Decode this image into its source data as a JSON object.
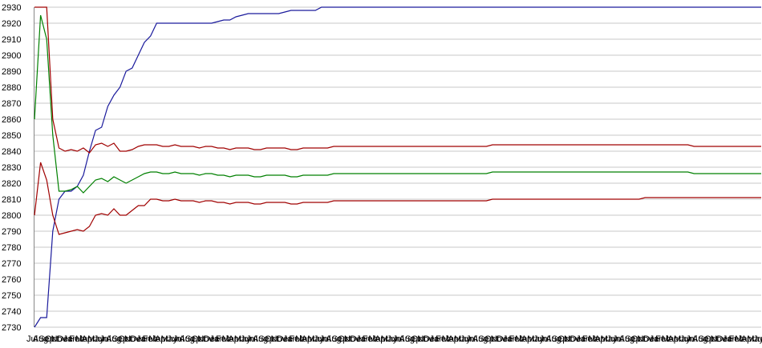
{
  "chart_data": {
    "type": "line",
    "categories": [
      "Jul",
      "Aug",
      "Sep",
      "Oct",
      "Nov",
      "Dec",
      "Jan",
      "Feb",
      "Mar",
      "Apr",
      "May",
      "Jun",
      "Jul",
      "Aug",
      "Sep",
      "Oct",
      "Nov",
      "Dec",
      "Jan",
      "Feb",
      "Mar",
      "Apr",
      "May",
      "Jun",
      "Jul",
      "Aug",
      "Sep",
      "Oct",
      "Nov",
      "Dec",
      "Jan",
      "Feb",
      "Mar",
      "Apr",
      "May",
      "Jun",
      "Jul",
      "Aug",
      "Sep",
      "Oct",
      "Nov",
      "Dec",
      "Jan",
      "Feb",
      "Mar",
      "Apr",
      "May",
      "Jun",
      "Jul",
      "Aug",
      "Sep",
      "Oct",
      "Nov",
      "Dec",
      "Jan",
      "Feb",
      "Mar",
      "Apr",
      "May",
      "Jun",
      "Jul",
      "Aug",
      "Sep",
      "Oct",
      "Nov",
      "Dec",
      "Jan",
      "Feb",
      "Mar",
      "Apr",
      "May",
      "Jun",
      "Jul",
      "Aug",
      "Sep",
      "Oct",
      "Nov",
      "Dec",
      "Jan",
      "Feb",
      "Mar",
      "Apr",
      "May",
      "Jun",
      "Jul",
      "Aug",
      "Sep",
      "Oct",
      "Nov",
      "Dec",
      "Jan",
      "Feb",
      "Mar",
      "Apr",
      "May",
      "Jun",
      "Jul",
      "Aug",
      "Sep",
      "Oct",
      "Nov",
      "Dec",
      "Jan",
      "Feb",
      "Mar",
      "Apr",
      "May",
      "Jun",
      "Jul",
      "Aug",
      "Sep",
      "Oct",
      "Nov",
      "Dec",
      "Jan",
      "Feb",
      "Mar",
      "Apr",
      "May",
      "Jun"
    ],
    "series": [
      {
        "color": "#1a1a9c",
        "values": [
          2730,
          2736,
          2736,
          2790,
          2810,
          2815,
          2815,
          2818,
          2825,
          2840,
          2853,
          2855,
          2868,
          2875,
          2880,
          2890,
          2892,
          2900,
          2908,
          2912,
          2920,
          2920,
          2920,
          2920,
          2920,
          2920,
          2920,
          2920,
          2920,
          2920,
          2921,
          2922,
          2922,
          2924,
          2925,
          2926,
          2926,
          2926,
          2926,
          2926,
          2926,
          2927,
          2928,
          2928,
          2928,
          2928,
          2928,
          2930,
          2930,
          2930,
          2930,
          2930,
          2930,
          2930,
          2930,
          2930,
          2930,
          2930,
          2930,
          2930,
          2930,
          2930,
          2930,
          2930,
          2930,
          2930,
          2930,
          2930,
          2930,
          2930,
          2930,
          2930,
          2930,
          2930,
          2930,
          2930,
          2930,
          2930,
          2930,
          2930,
          2930,
          2930,
          2930,
          2930,
          2930,
          2930,
          2930,
          2930,
          2930,
          2930,
          2930,
          2930,
          2930,
          2930,
          2930,
          2930,
          2930,
          2930,
          2930,
          2930,
          2930,
          2930,
          2930,
          2930,
          2930,
          2930,
          2930,
          2930,
          2930,
          2930,
          2930,
          2930,
          2930,
          2930,
          2930,
          2930,
          2930,
          2930,
          2930,
          2930
        ]
      },
      {
        "color": "#008000",
        "values": [
          2860,
          2925,
          2910,
          2850,
          2815,
          2815,
          2816,
          2818,
          2814,
          2818,
          2822,
          2823,
          2821,
          2824,
          2822,
          2820,
          2822,
          2824,
          2826,
          2827,
          2827,
          2826,
          2826,
          2827,
          2826,
          2826,
          2826,
          2825,
          2826,
          2826,
          2825,
          2825,
          2824,
          2825,
          2825,
          2825,
          2824,
          2824,
          2825,
          2825,
          2825,
          2825,
          2824,
          2824,
          2825,
          2825,
          2825,
          2825,
          2825,
          2826,
          2826,
          2826,
          2826,
          2826,
          2826,
          2826,
          2826,
          2826,
          2826,
          2826,
          2826,
          2826,
          2826,
          2826,
          2826,
          2826,
          2826,
          2826,
          2826,
          2826,
          2826,
          2826,
          2826,
          2826,
          2826,
          2827,
          2827,
          2827,
          2827,
          2827,
          2827,
          2827,
          2827,
          2827,
          2827,
          2827,
          2827,
          2827,
          2827,
          2827,
          2827,
          2827,
          2827,
          2827,
          2827,
          2827,
          2827,
          2827,
          2827,
          2827,
          2827,
          2827,
          2827,
          2827,
          2827,
          2827,
          2827,
          2827,
          2826,
          2826,
          2826,
          2826,
          2826,
          2826,
          2826,
          2826,
          2826,
          2826,
          2826,
          2826
        ]
      },
      {
        "color": "#a00000",
        "values": [
          2930,
          2930,
          2930,
          2860,
          2842,
          2840,
          2841,
          2840,
          2842,
          2839,
          2844,
          2845,
          2843,
          2845,
          2840,
          2840,
          2841,
          2843,
          2844,
          2844,
          2844,
          2843,
          2843,
          2844,
          2843,
          2843,
          2843,
          2842,
          2843,
          2843,
          2842,
          2842,
          2841,
          2842,
          2842,
          2842,
          2841,
          2841,
          2842,
          2842,
          2842,
          2842,
          2841,
          2841,
          2842,
          2842,
          2842,
          2842,
          2842,
          2843,
          2843,
          2843,
          2843,
          2843,
          2843,
          2843,
          2843,
          2843,
          2843,
          2843,
          2843,
          2843,
          2843,
          2843,
          2843,
          2843,
          2843,
          2843,
          2843,
          2843,
          2843,
          2843,
          2843,
          2843,
          2843,
          2844,
          2844,
          2844,
          2844,
          2844,
          2844,
          2844,
          2844,
          2844,
          2844,
          2844,
          2844,
          2844,
          2844,
          2844,
          2844,
          2844,
          2844,
          2844,
          2844,
          2844,
          2844,
          2844,
          2844,
          2844,
          2844,
          2844,
          2844,
          2844,
          2844,
          2844,
          2844,
          2844,
          2843,
          2843,
          2843,
          2843,
          2843,
          2843,
          2843,
          2843,
          2843,
          2843,
          2843,
          2843
        ]
      },
      {
        "color": "#a00000",
        "values": [
          2800,
          2833,
          2822,
          2800,
          2788,
          2789,
          2790,
          2791,
          2790,
          2793,
          2800,
          2801,
          2800,
          2804,
          2800,
          2800,
          2803,
          2806,
          2806,
          2810,
          2810,
          2809,
          2809,
          2810,
          2809,
          2809,
          2809,
          2808,
          2809,
          2809,
          2808,
          2808,
          2807,
          2808,
          2808,
          2808,
          2807,
          2807,
          2808,
          2808,
          2808,
          2808,
          2807,
          2807,
          2808,
          2808,
          2808,
          2808,
          2808,
          2809,
          2809,
          2809,
          2809,
          2809,
          2809,
          2809,
          2809,
          2809,
          2809,
          2809,
          2809,
          2809,
          2809,
          2809,
          2809,
          2809,
          2809,
          2809,
          2809,
          2809,
          2809,
          2809,
          2809,
          2809,
          2809,
          2810,
          2810,
          2810,
          2810,
          2810,
          2810,
          2810,
          2810,
          2810,
          2810,
          2810,
          2810,
          2810,
          2810,
          2810,
          2810,
          2810,
          2810,
          2810,
          2810,
          2810,
          2810,
          2810,
          2810,
          2810,
          2811,
          2811,
          2811,
          2811,
          2811,
          2811,
          2811,
          2811,
          2811,
          2811,
          2811,
          2811,
          2811,
          2811,
          2811,
          2811,
          2811,
          2811,
          2811,
          2811
        ]
      }
    ],
    "ylim": [
      2730,
      2930
    ],
    "yticks": [
      2730,
      2740,
      2750,
      2760,
      2770,
      2780,
      2790,
      2800,
      2810,
      2820,
      2830,
      2840,
      2850,
      2860,
      2870,
      2880,
      2890,
      2900,
      2910,
      2920,
      2930
    ],
    "grid": true
  }
}
